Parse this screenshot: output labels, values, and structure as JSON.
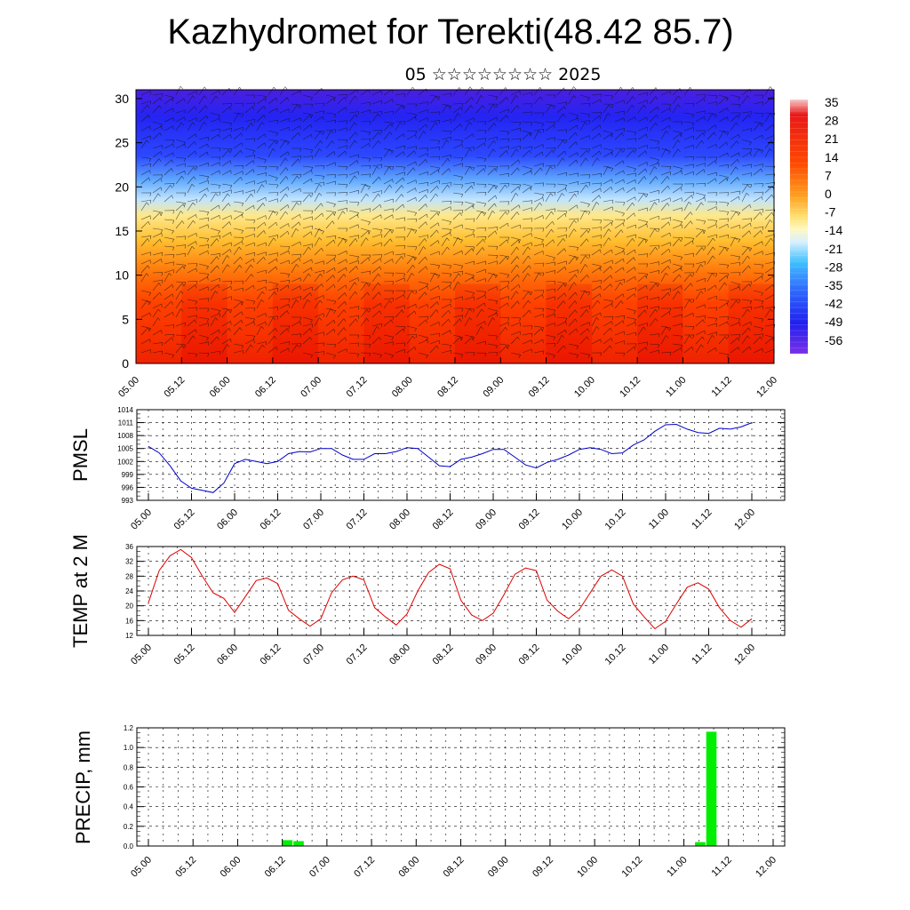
{
  "header": {
    "title": "Kazhydromet for Terekti(48.42 85.7)",
    "subtitle": "05 ☆☆☆☆☆☆☆☆ 2025"
  },
  "chart_data": [
    {
      "type": "heatmap",
      "title": "",
      "xlabel": "",
      "ylabel": "",
      "x_ticks": [
        "05.00",
        "05.12",
        "06.00",
        "06.12",
        "07.00",
        "07.12",
        "08.00",
        "08.12",
        "09.00",
        "09.12",
        "10.00",
        "10.12",
        "11.00",
        "11.12",
        "12.00"
      ],
      "y_ticks": [
        0,
        5,
        10,
        15,
        20,
        25,
        30
      ],
      "ylim": [
        0,
        31
      ],
      "colorbar_labels": [
        35,
        28,
        21,
        14,
        7,
        0,
        -7,
        -14,
        -21,
        -28,
        -35,
        -42,
        -49,
        -56
      ],
      "colors": {
        "warm": "#ff2000",
        "mid": "#ffe060",
        "cold": "#3020f0"
      },
      "overlay": "wind barbs"
    },
    {
      "type": "line",
      "ylabel": "PMSL",
      "x_ticks": [
        "05.00",
        "05.12",
        "06.00",
        "06.12",
        "07.00",
        "07.12",
        "08.00",
        "08.12",
        "09.00",
        "09.12",
        "10.00",
        "10.12",
        "11.00",
        "11.12",
        "12.00"
      ],
      "y_ticks": [
        993,
        996,
        999,
        1002,
        1005,
        1008,
        1011,
        1014
      ],
      "ylim": [
        993,
        1014
      ],
      "color": "#0000cc",
      "values": [
        1005.5,
        1004.0,
        1001.0,
        997.5,
        995.8,
        995.3,
        994.8,
        997.0,
        1001.5,
        1002.5,
        1002.0,
        1001.5,
        1002.0,
        1003.8,
        1004.3,
        1004.2,
        1005.0,
        1005.0,
        1003.5,
        1002.5,
        1002.5,
        1003.8,
        1003.8,
        1004.3,
        1005.2,
        1005.0,
        1003.0,
        1001.0,
        1000.8,
        1002.5,
        1003.0,
        1003.8,
        1004.8,
        1004.8,
        1003.0,
        1001.2,
        1000.5,
        1001.8,
        1002.5,
        1003.5,
        1004.8,
        1005.2,
        1004.8,
        1003.8,
        1004.0,
        1005.8,
        1007.0,
        1009.0,
        1010.5,
        1010.6,
        1009.5,
        1008.7,
        1008.5,
        1009.7,
        1009.5,
        1010.0,
        1011.0
      ]
    },
    {
      "type": "line",
      "ylabel": "TEMP at 2 M",
      "x_ticks": [
        "05.00",
        "05.12",
        "06.00",
        "06.12",
        "07.00",
        "07.12",
        "08.00",
        "08.12",
        "09.00",
        "09.12",
        "10.00",
        "10.12",
        "11.00",
        "11.12",
        "12.00"
      ],
      "y_ticks": [
        12,
        16,
        20,
        24,
        28,
        32,
        36
      ],
      "ylim": [
        12,
        36
      ],
      "color": "#dd0000",
      "values": [
        20.8,
        29.5,
        33.5,
        35.2,
        33.0,
        28.0,
        23.5,
        22.0,
        18.2,
        22.5,
        26.8,
        27.5,
        26.0,
        18.8,
        16.5,
        14.5,
        16.5,
        23.5,
        27.0,
        28.0,
        27.0,
        19.5,
        17.0,
        14.8,
        17.8,
        24.0,
        29.0,
        31.2,
        30.0,
        21.5,
        17.5,
        16.0,
        18.0,
        23.0,
        28.5,
        30.2,
        29.5,
        21.5,
        18.5,
        16.5,
        19.0,
        23.5,
        28.0,
        29.7,
        28.0,
        20.5,
        17.0,
        13.8,
        15.8,
        20.5,
        25.0,
        26.2,
        24.5,
        19.5,
        16.0,
        14.2,
        16.5
      ]
    },
    {
      "type": "bar",
      "ylabel": "PRECIP, mm",
      "x_ticks": [
        "05.00",
        "05.12",
        "06.00",
        "06.12",
        "07.00",
        "07.12",
        "08.00",
        "08.12",
        "09.00",
        "09.12",
        "10.00",
        "10.12",
        "11.00",
        "11.12",
        "12.00"
      ],
      "y_ticks": [
        "0.0",
        "0.2",
        "0.4",
        "0.6",
        "0.8",
        "1.0",
        "1.2"
      ],
      "ylim": [
        0,
        1.2
      ],
      "color": "#00ee00",
      "values": [
        0,
        0,
        0,
        0,
        0,
        0,
        0,
        0,
        0,
        0,
        0,
        0,
        0.06,
        0.05,
        0,
        0,
        0,
        0,
        0,
        0,
        0,
        0,
        0,
        0,
        0,
        0,
        0,
        0,
        0,
        0,
        0,
        0,
        0,
        0,
        0,
        0,
        0,
        0,
        0,
        0,
        0,
        0,
        0,
        0,
        0,
        0,
        0,
        0,
        0,
        0.04,
        1.16,
        0,
        0,
        0,
        0,
        0,
        0
      ]
    }
  ]
}
